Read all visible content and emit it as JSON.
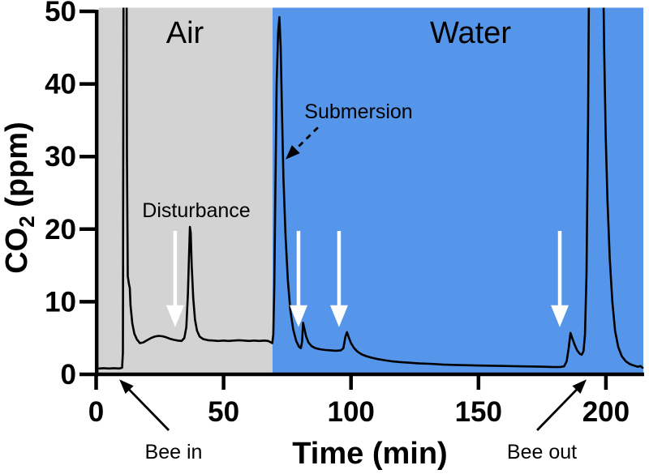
{
  "labels": {
    "air": "Air",
    "water": "Water",
    "disturbance": "Disturbance",
    "submersion": "Submersion",
    "bee_in": "Bee in",
    "bee_out": "Bee out"
  },
  "axis": {
    "x_title": "Time (min)",
    "y_title_main": "CO",
    "y_title_sub": "2",
    "y_title_rest": " (ppm)"
  },
  "chart_data": {
    "type": "line",
    "xlabel": "Time (min)",
    "ylabel": "CO2 (ppm)",
    "xlim": [
      0,
      215
    ],
    "ylim": [
      0,
      50
    ],
    "x_ticks": [
      0,
      50,
      100,
      150,
      200
    ],
    "y_ticks": [
      0,
      10,
      20,
      30,
      40,
      50
    ],
    "grid": false,
    "trace_color": "#000000",
    "regions": [
      {
        "name": "air-phase",
        "label": "Air",
        "x0": 1.0,
        "x1": 69.2,
        "color": "#d3d3d3"
      },
      {
        "name": "water-phase",
        "label": "Water",
        "x0": 69.2,
        "x1": 214.7,
        "color": "#5596ea"
      }
    ],
    "series": [
      {
        "name": "CO2 trace",
        "points": [
          [
            1.2,
            0.8
          ],
          [
            3,
            0.85
          ],
          [
            5,
            0.8
          ],
          [
            7,
            0.85
          ],
          [
            9,
            0.8
          ],
          [
            10.2,
            0.9
          ],
          [
            10.5,
            3
          ],
          [
            10.8,
            62
          ],
          [
            11.9,
            62
          ],
          [
            12.1,
            30
          ],
          [
            12.4,
            13.5
          ],
          [
            12.9,
            12.4
          ],
          [
            13.2,
            11.9
          ],
          [
            13.5,
            9.5
          ],
          [
            14.2,
            7
          ],
          [
            15,
            5.6
          ],
          [
            16,
            4.8
          ],
          [
            17.2,
            4.3
          ],
          [
            18.5,
            4.4
          ],
          [
            20,
            4.7
          ],
          [
            21.5,
            5.0
          ],
          [
            23,
            5.2
          ],
          [
            24.5,
            5.3
          ],
          [
            26,
            5.25
          ],
          [
            27.5,
            5.1
          ],
          [
            29,
            4.9
          ],
          [
            30.5,
            4.75
          ],
          [
            32,
            4.65
          ],
          [
            33.5,
            4.6
          ],
          [
            34.6,
            5.0
          ],
          [
            35.4,
            6.5
          ],
          [
            36.0,
            11
          ],
          [
            36.5,
            17
          ],
          [
            36.8,
            20.3
          ],
          [
            37.1,
            19.5
          ],
          [
            37.5,
            15
          ],
          [
            38.1,
            10.5
          ],
          [
            38.8,
            7.5
          ],
          [
            39.6,
            6.0
          ],
          [
            40.6,
            5.2
          ],
          [
            42,
            4.85
          ],
          [
            44,
            4.7
          ],
          [
            46,
            4.65
          ],
          [
            48,
            4.6
          ],
          [
            50,
            4.65
          ],
          [
            52,
            4.6
          ],
          [
            54,
            4.65
          ],
          [
            56,
            4.7
          ],
          [
            58,
            4.65
          ],
          [
            60,
            4.6
          ],
          [
            62,
            4.65
          ],
          [
            64,
            4.6
          ],
          [
            66,
            4.65
          ],
          [
            67.5,
            4.6
          ],
          [
            68.6,
            4.4
          ],
          [
            69.1,
            4.3
          ],
          [
            69.5,
            5.5
          ],
          [
            69.9,
            12
          ],
          [
            70.3,
            25
          ],
          [
            70.8,
            40
          ],
          [
            71.4,
            47
          ],
          [
            71.9,
            49.2
          ],
          [
            72.4,
            45
          ],
          [
            72.9,
            36
          ],
          [
            73.5,
            27
          ],
          [
            74.3,
            19
          ],
          [
            75.2,
            13
          ],
          [
            76.2,
            8.8
          ],
          [
            77.3,
            6.2
          ],
          [
            78.5,
            4.6
          ],
          [
            79.6,
            3.8
          ],
          [
            80.3,
            3.6
          ],
          [
            80.8,
            4.5
          ],
          [
            81.2,
            7.1
          ],
          [
            81.7,
            6.3
          ],
          [
            82.4,
            5.2
          ],
          [
            83.3,
            4.4
          ],
          [
            84.5,
            3.9
          ],
          [
            86,
            3.6
          ],
          [
            88,
            3.45
          ],
          [
            90,
            3.35
          ],
          [
            92,
            3.3
          ],
          [
            94,
            3.25
          ],
          [
            96,
            3.3
          ],
          [
            97,
            3.6
          ],
          [
            97.8,
            5.2
          ],
          [
            98.4,
            5.8
          ],
          [
            99.1,
            5.1
          ],
          [
            100,
            4.3
          ],
          [
            101.2,
            3.6
          ],
          [
            102.6,
            3.1
          ],
          [
            104.2,
            2.75
          ],
          [
            106,
            2.5
          ],
          [
            108,
            2.3
          ],
          [
            110.5,
            2.1
          ],
          [
            113,
            1.95
          ],
          [
            116,
            1.8
          ],
          [
            119,
            1.7
          ],
          [
            123,
            1.6
          ],
          [
            127,
            1.5
          ],
          [
            131,
            1.45
          ],
          [
            136,
            1.35
          ],
          [
            141,
            1.3
          ],
          [
            146,
            1.25
          ],
          [
            151,
            1.2
          ],
          [
            156,
            1.18
          ],
          [
            161,
            1.15
          ],
          [
            166,
            1.1
          ],
          [
            171,
            1.08
          ],
          [
            175,
            1.05
          ],
          [
            179,
            1.02
          ],
          [
            182,
            1.0
          ],
          [
            183.6,
            1.1
          ],
          [
            184.6,
            1.8
          ],
          [
            185.4,
            3.6
          ],
          [
            186.1,
            5.7
          ],
          [
            186.8,
            5.0
          ],
          [
            187.7,
            4.1
          ],
          [
            188.7,
            3.3
          ],
          [
            189.7,
            2.85
          ],
          [
            190.5,
            2.7
          ],
          [
            191.2,
            3.2
          ],
          [
            191.8,
            5.5
          ],
          [
            192.4,
            14
          ],
          [
            193.0,
            35
          ],
          [
            193.5,
            62
          ],
          [
            198.7,
            62
          ],
          [
            199.3,
            45
          ],
          [
            199.9,
            33
          ],
          [
            200.6,
            24
          ],
          [
            201.5,
            16
          ],
          [
            202.5,
            10
          ],
          [
            203.6,
            6
          ],
          [
            204.8,
            3.8
          ],
          [
            206.2,
            2.5
          ],
          [
            207.8,
            1.8
          ],
          [
            209.5,
            1.4
          ],
          [
            211,
            1.2
          ],
          [
            212.5,
            1.05
          ],
          [
            213.5,
            1.15
          ],
          [
            214.4,
            0.9
          ]
        ]
      }
    ],
    "annotations": {
      "white_arrows": [
        {
          "name": "disturbance-arrow",
          "t": 31.0,
          "v_top": 19.75,
          "v_tip": 6.5
        },
        {
          "name": "water-event-arrow-1",
          "t": 79.4,
          "v_top": 19.75,
          "v_tip": 6.5
        },
        {
          "name": "water-event-arrow-2",
          "t": 95.3,
          "v_top": 19.75,
          "v_tip": 6.5
        },
        {
          "name": "bee-out-event-arrow",
          "t": 181.9,
          "v_top": 19.75,
          "v_tip": 6.5
        }
      ],
      "black_arrows": [
        {
          "name": "submersion-arrow",
          "tail": [
            87.0,
            34.0
          ],
          "tip": [
            74.3,
            29.6
          ],
          "dashed": true
        },
        {
          "name": "bee-in-arrow",
          "tail": [
            28.5,
            -7.7
          ],
          "tip": [
            9.1,
            -0.7
          ],
          "dashed": false
        },
        {
          "name": "bee-out-arrow",
          "tail": [
            173.0,
            -7.7
          ],
          "tip": [
            192.4,
            -0.7
          ],
          "dashed": false
        }
      ],
      "arrow_white": "#ffffff",
      "arrow_black": "#000000"
    }
  }
}
